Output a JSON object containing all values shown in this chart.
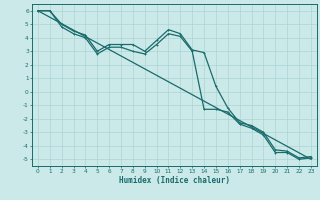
{
  "xlabel": "Humidex (Indice chaleur)",
  "xlim": [
    -0.5,
    23.5
  ],
  "ylim": [
    -5.5,
    6.5
  ],
  "yticks": [
    -5,
    -4,
    -3,
    -2,
    -1,
    0,
    1,
    2,
    3,
    4,
    5,
    6
  ],
  "xticks": [
    0,
    1,
    2,
    3,
    4,
    5,
    6,
    7,
    8,
    9,
    10,
    11,
    12,
    13,
    14,
    15,
    16,
    17,
    18,
    19,
    20,
    21,
    22,
    23
  ],
  "bg_color": "#cce9e9",
  "grid_color": "#aad4d4",
  "line_color": "#1a6b6b",
  "line1_x": [
    0,
    1,
    2,
    3,
    4,
    5,
    6,
    7,
    8,
    9,
    10,
    11,
    12,
    13,
    14,
    15,
    16,
    17,
    18,
    19,
    20,
    21,
    22,
    23
  ],
  "line1_y": [
    6.0,
    6.0,
    5.0,
    4.5,
    4.2,
    3.0,
    3.5,
    3.5,
    3.5,
    3.0,
    3.8,
    4.6,
    4.3,
    3.1,
    2.9,
    0.4,
    -1.2,
    -2.3,
    -2.5,
    -3.0,
    -4.3,
    -4.4,
    -4.9,
    -4.8
  ],
  "line2_x": [
    0,
    1,
    2,
    3,
    4,
    5,
    6,
    7,
    8,
    9,
    10,
    11,
    12,
    13,
    14,
    15,
    16,
    17,
    18,
    19,
    20,
    21,
    22,
    23
  ],
  "line2_y": [
    6.0,
    6.0,
    4.8,
    4.3,
    4.0,
    2.8,
    3.3,
    3.3,
    3.0,
    2.8,
    3.5,
    4.3,
    4.1,
    3.0,
    -1.3,
    -1.3,
    -1.5,
    -2.4,
    -2.7,
    -3.2,
    -4.5,
    -4.5,
    -5.0,
    -4.9
  ],
  "line3_x": [
    0,
    23
  ],
  "line3_y": [
    6.0,
    -5.0
  ]
}
